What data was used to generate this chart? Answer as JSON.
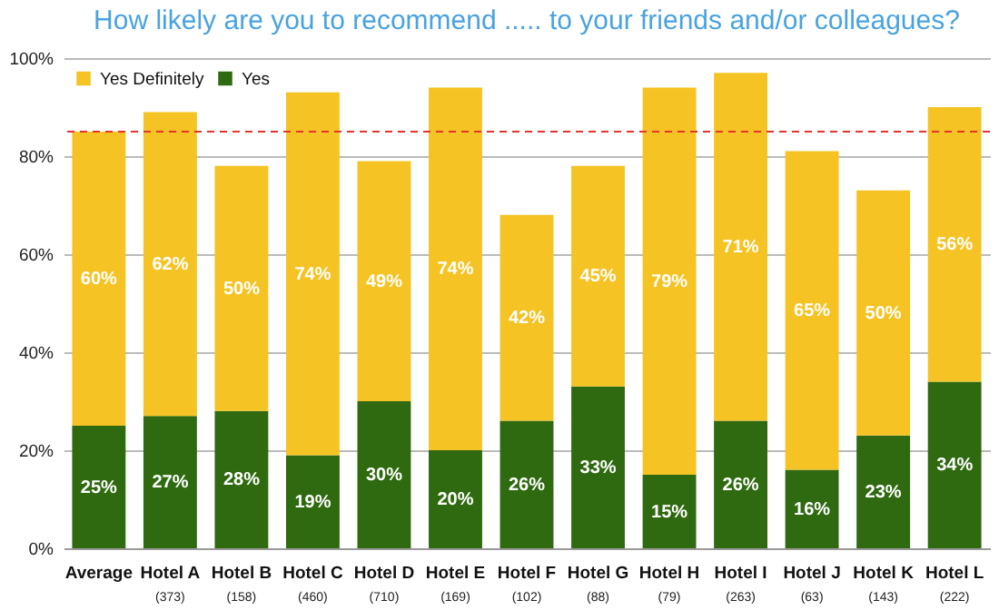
{
  "chart_data": {
    "type": "bar",
    "title": "How likely are you to recommend ..... to your friends and/or colleagues?",
    "categories": [
      "Average",
      "Hotel A",
      "Hotel B",
      "Hotel C",
      "Hotel D",
      "Hotel E",
      "Hotel F",
      "Hotel G",
      "Hotel H",
      "Hotel I",
      "Hotel J",
      "Hotel K",
      "Hotel L"
    ],
    "stacked": true,
    "series": [
      {
        "name": "Yes",
        "color": "#2f6a10",
        "values": [
          25,
          27,
          28,
          19,
          30,
          20,
          26,
          33,
          15,
          26,
          16,
          23,
          34
        ],
        "value_labels": [
          "25%",
          "27%",
          "28%",
          "19%",
          "30%",
          "20%",
          "26%",
          "33%",
          "15%",
          "26%",
          "16%",
          "23%",
          "34%"
        ]
      },
      {
        "name": "Yes Definitely",
        "color": "#f5c323",
        "values": [
          60,
          62,
          50,
          74,
          49,
          74,
          42,
          45,
          79,
          71,
          65,
          50,
          56
        ],
        "value_labels": [
          "60%",
          "62%",
          "50%",
          "74%",
          "49%",
          "74%",
          "42%",
          "45%",
          "79%",
          "71%",
          "65%",
          "50%",
          "56%"
        ]
      }
    ],
    "ylim": [
      0,
      100
    ],
    "yticks": [
      {
        "value": 0,
        "label": "0%"
      },
      {
        "value": 20,
        "label": "20%"
      },
      {
        "value": 40,
        "label": "40%"
      },
      {
        "value": 60,
        "label": "60%"
      },
      {
        "value": 80,
        "label": "80%"
      },
      {
        "value": 100,
        "label": "100%"
      }
    ],
    "grid": "y",
    "legend": "top left",
    "ref_lines": [
      {
        "axis": "y",
        "value": 85,
        "color": "#e8322b",
        "line_style": "dashed"
      }
    ],
    "annotations": [
      "(373)",
      "(158)",
      "(460)",
      "(710)",
      "(169)",
      "(102)",
      "(88)",
      "(79)",
      "(263)",
      "(63)",
      "(143)",
      "(222)"
    ]
  }
}
